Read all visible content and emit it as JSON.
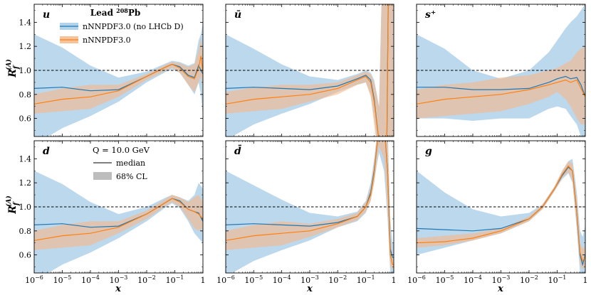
{
  "figure": {
    "ylabel_main": "R",
    "ylabel_sub": "f",
    "ylabel_sup": "(A)",
    "xlabel": "x",
    "legend_nucleus": {
      "prefix": "Lead ",
      "mass_number": "208",
      "symbol": "Pb",
      "series": [
        "nNNPDF3.0 (no LHCb D)",
        "nNNPDF3.0"
      ]
    },
    "legend_scale": {
      "title": "Q = 10.0 GeV",
      "median": "median",
      "band": "68% CL"
    },
    "colors": {
      "blue": "#1f77b4",
      "orange": "#ff7f0e",
      "blue_band": "#a6cbe6",
      "orange_band": "#f7b98a"
    }
  },
  "chart_data": [
    {
      "type": "area",
      "name": "u",
      "title": "u",
      "xscale": "log",
      "xlim": [
        1e-06,
        1
      ],
      "ylim": [
        0.45,
        1.55
      ],
      "yticks": [
        0.6,
        0.8,
        1.0,
        1.2,
        1.4
      ],
      "reference_line": 1.0,
      "x": [
        1e-06,
        1e-05,
        0.0001,
        0.001,
        0.01,
        0.05,
        0.08,
        0.15,
        0.3,
        0.5,
        0.7,
        0.85,
        1
      ],
      "series": [
        {
          "name": "nNNPDF3.0 (no LHCb D)",
          "median": [
            0.85,
            0.86,
            0.83,
            0.84,
            0.95,
            1.03,
            1.05,
            1.03,
            0.96,
            0.94,
            1.04,
            1.0,
            0.97
          ],
          "lower": [
            0.38,
            0.52,
            0.62,
            0.74,
            0.9,
            0.99,
            1.01,
            0.98,
            0.88,
            0.8,
            0.9,
            0.8,
            0.62
          ],
          "upper": [
            1.3,
            1.19,
            1.04,
            0.94,
            0.99,
            1.06,
            1.08,
            1.07,
            1.04,
            1.06,
            1.25,
            1.3,
            1.4
          ]
        },
        {
          "name": "nNNPDF3.0",
          "median": [
            0.72,
            0.76,
            0.78,
            0.83,
            0.95,
            1.03,
            1.05,
            1.02,
            0.95,
            0.93,
            1.02,
            1.12,
            0.98
          ],
          "lower": [
            0.64,
            0.66,
            0.68,
            0.78,
            0.92,
            1.0,
            1.02,
            0.98,
            0.88,
            0.82,
            0.9,
            0.95,
            0.85
          ],
          "upper": [
            0.8,
            0.85,
            0.88,
            0.88,
            0.97,
            1.05,
            1.07,
            1.06,
            1.03,
            1.05,
            1.17,
            1.27,
            1.15
          ]
        }
      ]
    },
    {
      "type": "area",
      "name": "ubar",
      "title": "ū",
      "xscale": "log",
      "xlim": [
        1e-06,
        1
      ],
      "ylim": [
        0.45,
        1.55
      ],
      "yticks": [
        0.6,
        0.8,
        1.0,
        1.2,
        1.4
      ],
      "reference_line": 1.0,
      "x": [
        1e-06,
        1e-05,
        0.0001,
        0.001,
        0.01,
        0.05,
        0.1,
        0.15,
        0.2,
        0.3,
        0.45,
        0.55,
        0.65,
        0.8,
        1
      ],
      "series": [
        {
          "name": "nNNPDF3.0 (no LHCb D)",
          "median": [
            0.85,
            0.86,
            0.85,
            0.84,
            0.87,
            0.93,
            0.96,
            0.92,
            0.76,
            0.4,
            0.1,
            0.1,
            1.8,
            1.8,
            1.8
          ],
          "lower": [
            0.42,
            0.55,
            0.64,
            0.72,
            0.82,
            0.88,
            0.9,
            0.8,
            0.6,
            0.25,
            -0.5,
            -0.5,
            0.2,
            0.2,
            0.2
          ],
          "upper": [
            1.3,
            1.18,
            1.05,
            0.95,
            0.92,
            0.97,
            1.0,
            0.98,
            0.92,
            0.7,
            2.5,
            2.5,
            2.5,
            2.5,
            2.5
          ]
        },
        {
          "name": "nNNPDF3.0",
          "median": [
            0.72,
            0.76,
            0.78,
            0.8,
            0.85,
            0.92,
            0.95,
            0.9,
            0.74,
            0.4,
            0.1,
            0.1,
            1.8,
            1.8,
            1.8
          ],
          "lower": [
            0.64,
            0.66,
            0.68,
            0.74,
            0.8,
            0.88,
            0.9,
            0.78,
            0.55,
            0.2,
            -0.5,
            -0.5,
            0.2,
            0.2,
            0.2
          ],
          "upper": [
            0.82,
            0.86,
            0.88,
            0.88,
            0.9,
            0.96,
            0.99,
            0.97,
            0.9,
            0.7,
            2.5,
            2.5,
            2.5,
            2.5,
            2.5
          ]
        }
      ]
    },
    {
      "type": "area",
      "name": "splus",
      "title": "s⁺",
      "xscale": "log",
      "xlim": [
        1e-06,
        1
      ],
      "ylim": [
        0.45,
        1.55
      ],
      "yticks": [
        0.6,
        0.8,
        1.0,
        1.2,
        1.4
      ],
      "reference_line": 1.0,
      "x": [
        1e-06,
        1e-05,
        0.0001,
        0.001,
        0.01,
        0.05,
        0.1,
        0.2,
        0.3,
        0.5,
        0.7,
        1
      ],
      "series": [
        {
          "name": "nNNPDF3.0 (no LHCb D)",
          "median": [
            0.86,
            0.86,
            0.84,
            0.84,
            0.85,
            0.9,
            0.93,
            0.95,
            0.93,
            0.94,
            0.88,
            0.78
          ],
          "lower": [
            0.6,
            0.6,
            0.58,
            0.6,
            0.6,
            0.68,
            0.7,
            0.68,
            0.62,
            0.55,
            0.45,
            0.45
          ],
          "upper": [
            1.3,
            1.18,
            1.0,
            0.93,
            1.0,
            1.15,
            1.25,
            1.35,
            1.4,
            1.45,
            1.5,
            1.55
          ]
        },
        {
          "name": "nNNPDF3.0",
          "median": [
            0.72,
            0.76,
            0.78,
            0.8,
            0.84,
            0.88,
            0.9,
            0.92,
            0.9,
            0.92,
            0.85,
            0.78
          ],
          "lower": [
            0.6,
            0.62,
            0.64,
            0.66,
            0.72,
            0.78,
            0.82,
            0.76,
            0.7,
            0.6,
            0.55,
            0.55
          ],
          "upper": [
            0.84,
            0.88,
            0.9,
            0.94,
            0.96,
            1.0,
            1.02,
            1.06,
            1.08,
            1.15,
            1.18,
            1.2
          ]
        }
      ]
    },
    {
      "type": "area",
      "name": "d",
      "title": "d",
      "xscale": "log",
      "xlim": [
        1e-06,
        1
      ],
      "ylim": [
        0.45,
        1.55
      ],
      "yticks": [
        0.6,
        0.8,
        1.0,
        1.2,
        1.4
      ],
      "reference_line": 1.0,
      "x": [
        1e-06,
        1e-05,
        0.0001,
        0.001,
        0.01,
        0.05,
        0.08,
        0.15,
        0.3,
        0.5,
        0.7,
        1
      ],
      "series": [
        {
          "name": "nNNPDF3.0 (no LHCb D)",
          "median": [
            0.85,
            0.86,
            0.83,
            0.84,
            0.94,
            1.04,
            1.07,
            1.05,
            0.98,
            0.96,
            0.95,
            0.88
          ],
          "lower": [
            0.38,
            0.52,
            0.62,
            0.74,
            0.88,
            1.0,
            1.03,
            0.99,
            0.88,
            0.78,
            0.74,
            0.7
          ],
          "upper": [
            1.3,
            1.19,
            1.04,
            0.94,
            1.0,
            1.08,
            1.1,
            1.08,
            1.05,
            1.1,
            1.2,
            1.15
          ]
        },
        {
          "name": "nNNPDF3.0",
          "median": [
            0.72,
            0.76,
            0.78,
            0.83,
            0.94,
            1.04,
            1.07,
            1.04,
            0.98,
            0.96,
            0.94,
            0.9
          ],
          "lower": [
            0.64,
            0.66,
            0.68,
            0.78,
            0.9,
            1.01,
            1.04,
            1.0,
            0.9,
            0.82,
            0.8,
            0.82
          ],
          "upper": [
            0.8,
            0.85,
            0.88,
            0.88,
            0.97,
            1.07,
            1.1,
            1.08,
            1.04,
            1.08,
            1.1,
            1.04
          ]
        }
      ]
    },
    {
      "type": "area",
      "name": "dbar",
      "title": "d̄",
      "xscale": "log",
      "xlim": [
        1e-06,
        1
      ],
      "ylim": [
        0.45,
        1.55
      ],
      "yticks": [
        0.6,
        0.8,
        1.0,
        1.2,
        1.4
      ],
      "reference_line": 1.0,
      "x": [
        1e-06,
        1e-05,
        0.0001,
        0.001,
        0.01,
        0.05,
        0.1,
        0.15,
        0.2,
        0.25,
        0.3,
        0.45,
        0.6,
        0.75,
        0.9,
        1
      ],
      "series": [
        {
          "name": "nNNPDF3.0 (no LHCb D)",
          "median": [
            0.85,
            0.86,
            0.85,
            0.84,
            0.87,
            0.92,
            1.0,
            1.12,
            1.3,
            1.5,
            1.65,
            1.7,
            1.3,
            0.65,
            0.58,
            0.58
          ],
          "lower": [
            0.42,
            0.55,
            0.64,
            0.72,
            0.83,
            0.88,
            0.95,
            1.05,
            1.2,
            1.35,
            1.45,
            1.3,
            0.9,
            0.45,
            0.45,
            0.45
          ],
          "upper": [
            1.3,
            1.18,
            1.06,
            0.95,
            0.92,
            0.96,
            1.05,
            1.2,
            1.4,
            1.6,
            1.8,
            1.9,
            1.7,
            0.9,
            0.7,
            0.7
          ]
        },
        {
          "name": "nNNPDF3.0",
          "median": [
            0.72,
            0.76,
            0.78,
            0.8,
            0.86,
            0.92,
            1.0,
            1.1,
            1.28,
            1.5,
            1.65,
            1.7,
            1.3,
            0.6,
            0.52,
            0.52
          ],
          "lower": [
            0.64,
            0.66,
            0.68,
            0.75,
            0.83,
            0.89,
            0.96,
            1.05,
            1.2,
            1.4,
            1.5,
            1.4,
            1.0,
            0.5,
            0.48,
            0.48
          ],
          "upper": [
            0.8,
            0.85,
            0.88,
            0.86,
            0.9,
            0.95,
            1.04,
            1.16,
            1.36,
            1.6,
            1.8,
            1.9,
            1.6,
            0.75,
            0.58,
            0.58
          ]
        }
      ]
    },
    {
      "type": "area",
      "name": "g",
      "title": "g",
      "xscale": "log",
      "xlim": [
        1e-06,
        1
      ],
      "ylim": [
        0.45,
        1.55
      ],
      "yticks": [
        0.6,
        0.8,
        1.0,
        1.2,
        1.4
      ],
      "reference_line": 1.0,
      "x": [
        1e-06,
        1e-05,
        0.0001,
        0.001,
        0.01,
        0.03,
        0.08,
        0.15,
        0.25,
        0.35,
        0.5,
        0.65,
        0.8,
        1
      ],
      "series": [
        {
          "name": "nNNPDF3.0 (no LHCb D)",
          "median": [
            0.82,
            0.81,
            0.8,
            0.82,
            0.9,
            1.0,
            1.15,
            1.26,
            1.33,
            1.3,
            0.95,
            0.6,
            0.52,
            0.6
          ],
          "lower": [
            0.6,
            0.66,
            0.72,
            0.78,
            0.88,
            0.98,
            1.13,
            1.23,
            1.28,
            1.2,
            0.8,
            0.45,
            0.45,
            0.45
          ],
          "upper": [
            1.3,
            1.12,
            0.98,
            0.92,
            0.95,
            1.02,
            1.17,
            1.3,
            1.38,
            1.4,
            1.12,
            0.8,
            0.75,
            0.85
          ]
        },
        {
          "name": "nNNPDF3.0",
          "median": [
            0.7,
            0.71,
            0.74,
            0.8,
            0.9,
            1.0,
            1.15,
            1.27,
            1.34,
            1.3,
            0.95,
            0.62,
            0.55,
            0.58
          ],
          "lower": [
            0.66,
            0.68,
            0.72,
            0.78,
            0.88,
            0.98,
            1.13,
            1.24,
            1.29,
            1.22,
            0.85,
            0.52,
            0.48,
            0.5
          ],
          "upper": [
            0.74,
            0.76,
            0.78,
            0.82,
            0.92,
            1.02,
            1.17,
            1.3,
            1.38,
            1.36,
            1.05,
            0.7,
            0.65,
            0.68
          ]
        }
      ]
    }
  ]
}
